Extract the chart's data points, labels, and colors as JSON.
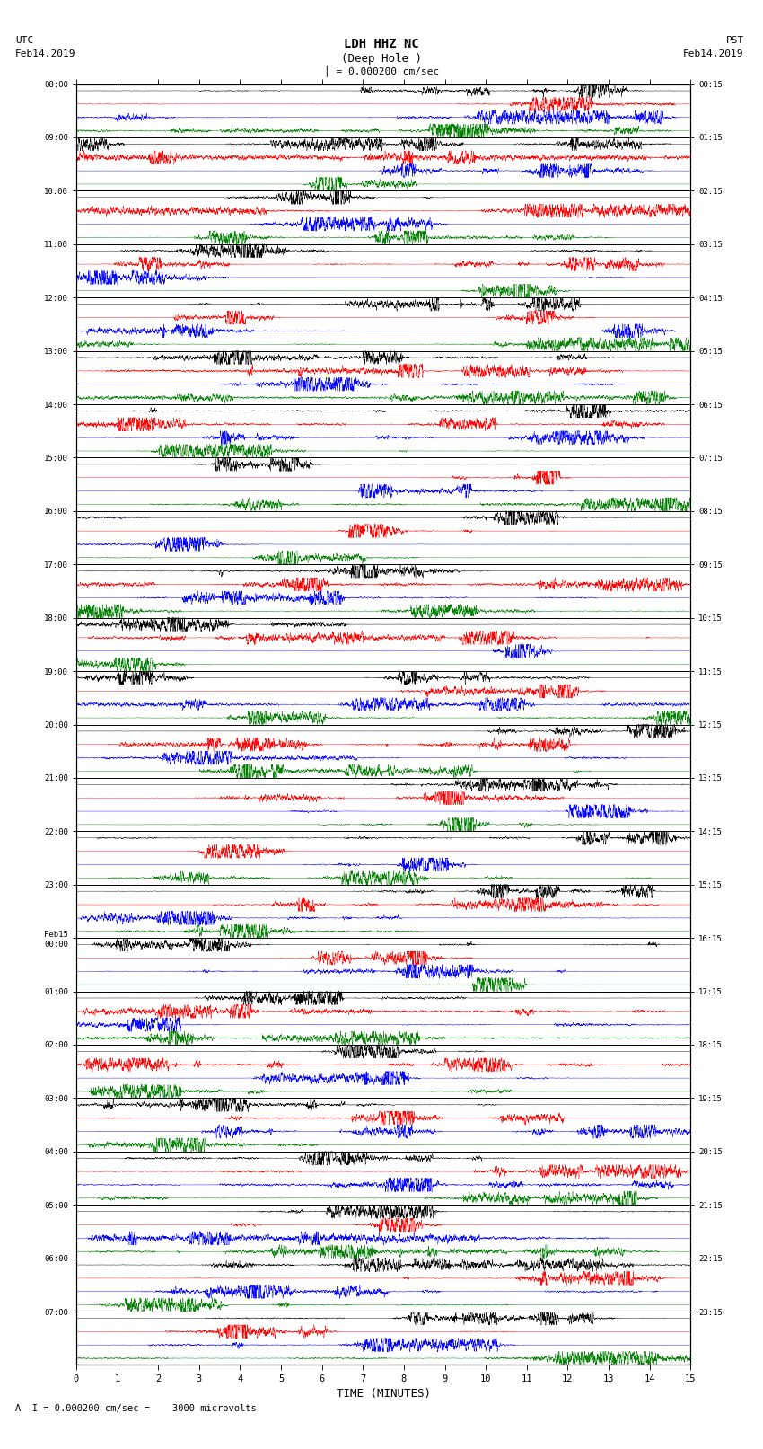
{
  "title_line1": "LDH HHZ NC",
  "title_line2": "(Deep Hole )",
  "scale_text": "= 0.000200 cm/sec",
  "bottom_text": "A  I = 0.000200 cm/sec =    3000 microvolts",
  "utc_label1": "UTC",
  "utc_label2": "Feb14,2019",
  "pst_label1": "PST",
  "pst_label2": "Feb14,2019",
  "xlabel": "TIME (MINUTES)",
  "left_times": [
    "08:00",
    "09:00",
    "10:00",
    "11:00",
    "12:00",
    "13:00",
    "14:00",
    "15:00",
    "16:00",
    "17:00",
    "18:00",
    "19:00",
    "20:00",
    "21:00",
    "22:00",
    "23:00",
    "Feb15\n00:00",
    "01:00",
    "02:00",
    "03:00",
    "04:00",
    "05:00",
    "06:00",
    "07:00"
  ],
  "right_times": [
    "00:15",
    "01:15",
    "02:15",
    "03:15",
    "04:15",
    "05:15",
    "06:15",
    "07:15",
    "08:15",
    "09:15",
    "10:15",
    "11:15",
    "12:15",
    "13:15",
    "14:15",
    "15:15",
    "16:15",
    "17:15",
    "18:15",
    "19:15",
    "20:15",
    "21:15",
    "22:15",
    "23:15"
  ],
  "n_rows": 24,
  "traces_per_row": 4,
  "minutes_per_row": 15,
  "colors": [
    "black",
    "red",
    "blue",
    "green"
  ],
  "bg_color": "white",
  "line_width": 0.3,
  "figsize": [
    8.5,
    16.13
  ],
  "dpi": 100,
  "xticks": [
    0,
    1,
    2,
    3,
    4,
    5,
    6,
    7,
    8,
    9,
    10,
    11,
    12,
    13,
    14,
    15
  ],
  "xticklabels": [
    "0",
    "1",
    "2",
    "3",
    "4",
    "5",
    "6",
    "7",
    "8",
    "9",
    "10",
    "11",
    "12",
    "13",
    "14",
    "15"
  ]
}
